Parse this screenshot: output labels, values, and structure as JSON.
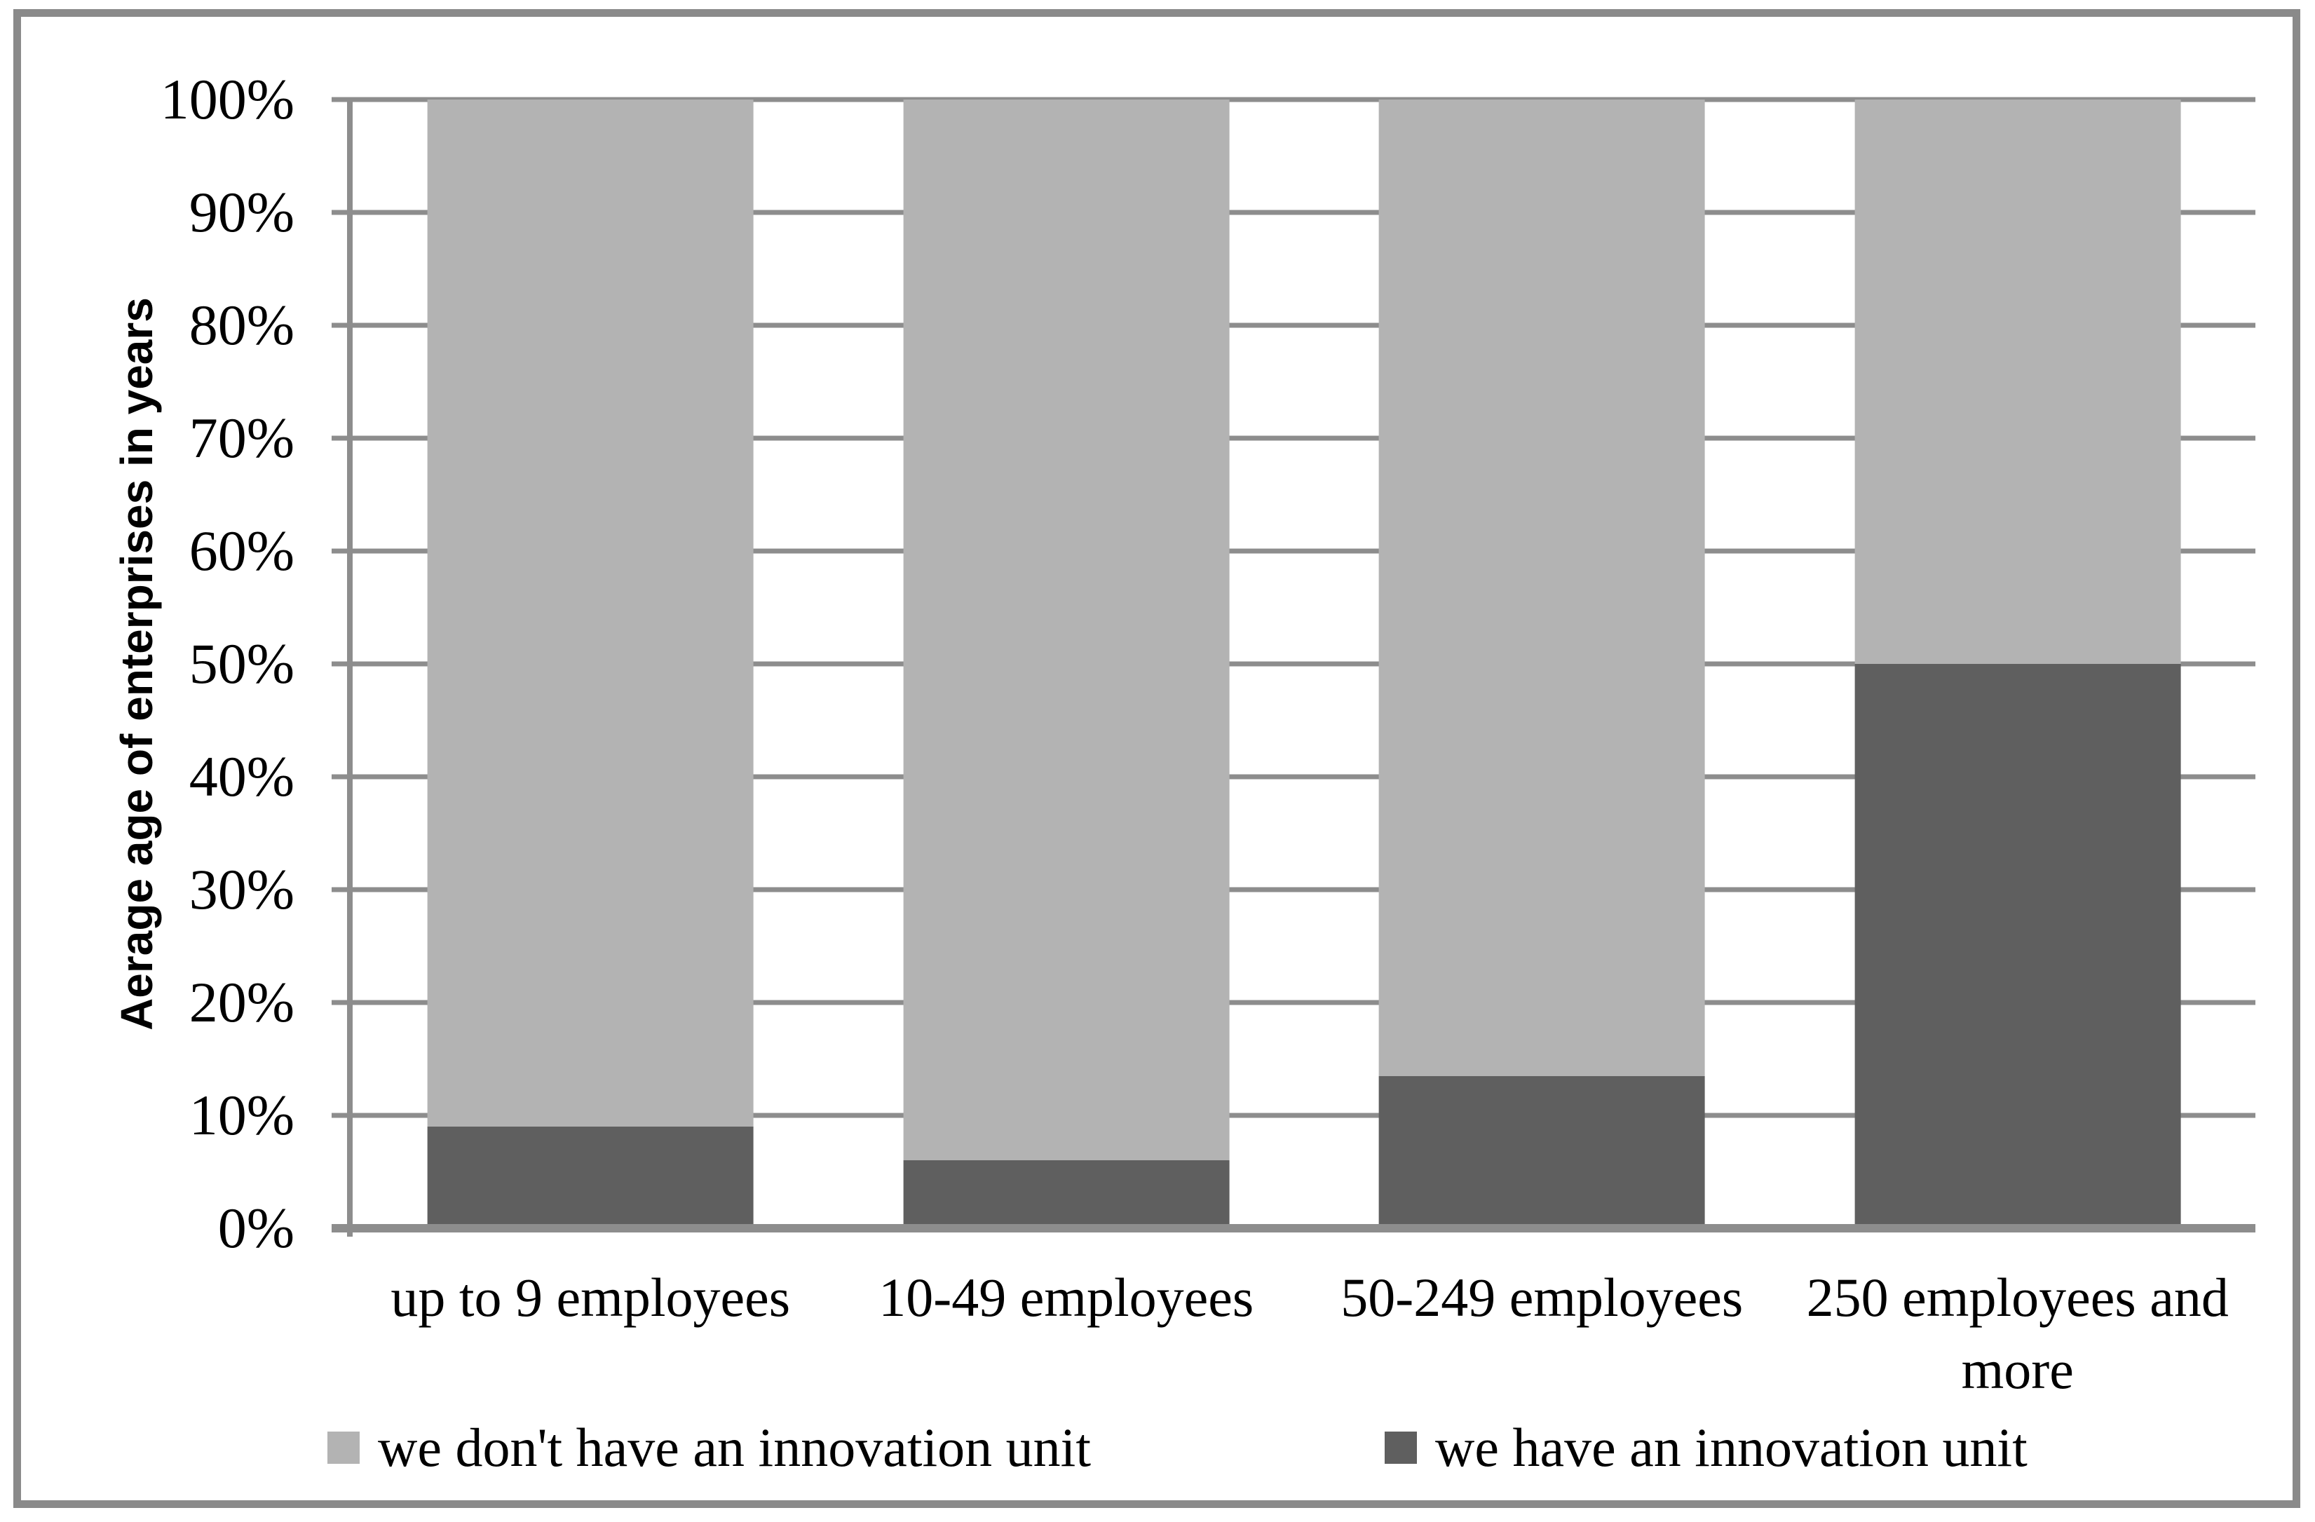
{
  "chart_data": {
    "type": "bar",
    "stacked": true,
    "normalized": "100%",
    "title": "",
    "xlabel": "",
    "ylabel": "Aerage age of enterprises in years",
    "ylim": [
      0,
      100
    ],
    "grid": true,
    "legend_position": "bottom",
    "categories": [
      "up to 9 employees",
      "10-49 employees",
      "50-249 employees",
      "250 employees and more"
    ],
    "yticks": [
      "0%",
      "10%",
      "20%",
      "30%",
      "40%",
      "50%",
      "60%",
      "70%",
      "80%",
      "90%",
      "100%"
    ],
    "series": [
      {
        "name": "we don't have an innovation unit",
        "color": "#b3b3b3",
        "values": [
          91,
          94,
          86.5,
          50
        ]
      },
      {
        "name": "we have an innovation unit",
        "color": "#5f5f5f",
        "values": [
          9,
          6,
          13.5,
          50
        ]
      }
    ]
  },
  "colors": {
    "gridline": "#8d8d8d",
    "axis": "#8d8d8d",
    "frame": "#8a8a8a",
    "text": "#000000",
    "background": "#ffffff"
  }
}
